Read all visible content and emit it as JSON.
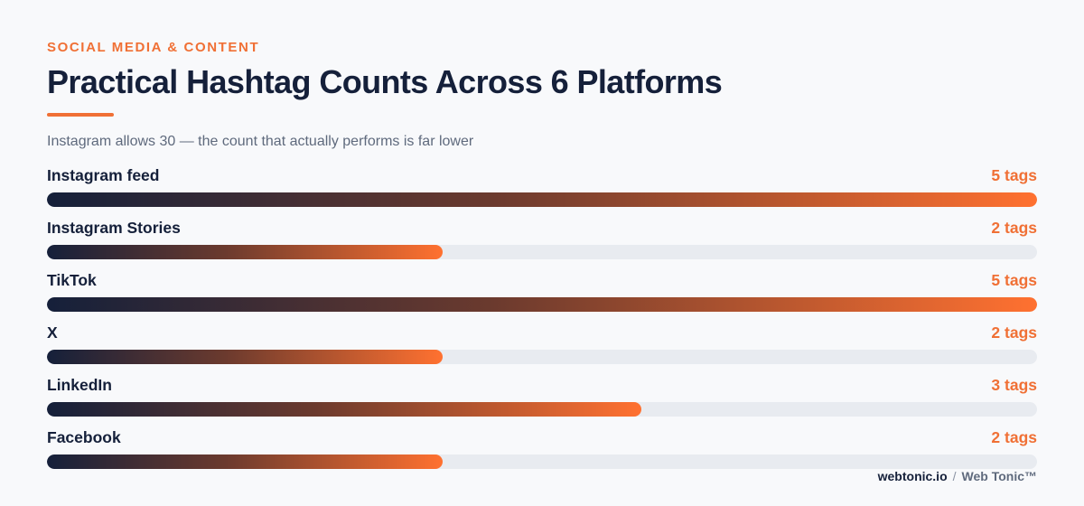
{
  "eyebrow": "SOCIAL MEDIA & CONTENT",
  "title": "Practical Hashtag Counts Across 6 Platforms",
  "subtitle": "Instagram allows 30 — the count that actually performs is far lower",
  "footer": {
    "site": "webtonic.io",
    "separator": "/",
    "brand": "Web Tonic™"
  },
  "colors": {
    "accent": "#f07035",
    "ink": "#15203a",
    "track": "#e8ebf0"
  },
  "chart_data": {
    "type": "bar",
    "orientation": "horizontal",
    "categories": [
      "Instagram feed",
      "Instagram Stories",
      "TikTok",
      "X",
      "LinkedIn",
      "Facebook"
    ],
    "values": [
      5,
      2,
      5,
      2,
      3,
      2
    ],
    "value_labels": [
      "5 tags",
      "2 tags",
      "5 tags",
      "2 tags",
      "3 tags",
      "2 tags"
    ],
    "xlim": [
      0,
      5
    ],
    "grid": false,
    "legend": "none"
  }
}
